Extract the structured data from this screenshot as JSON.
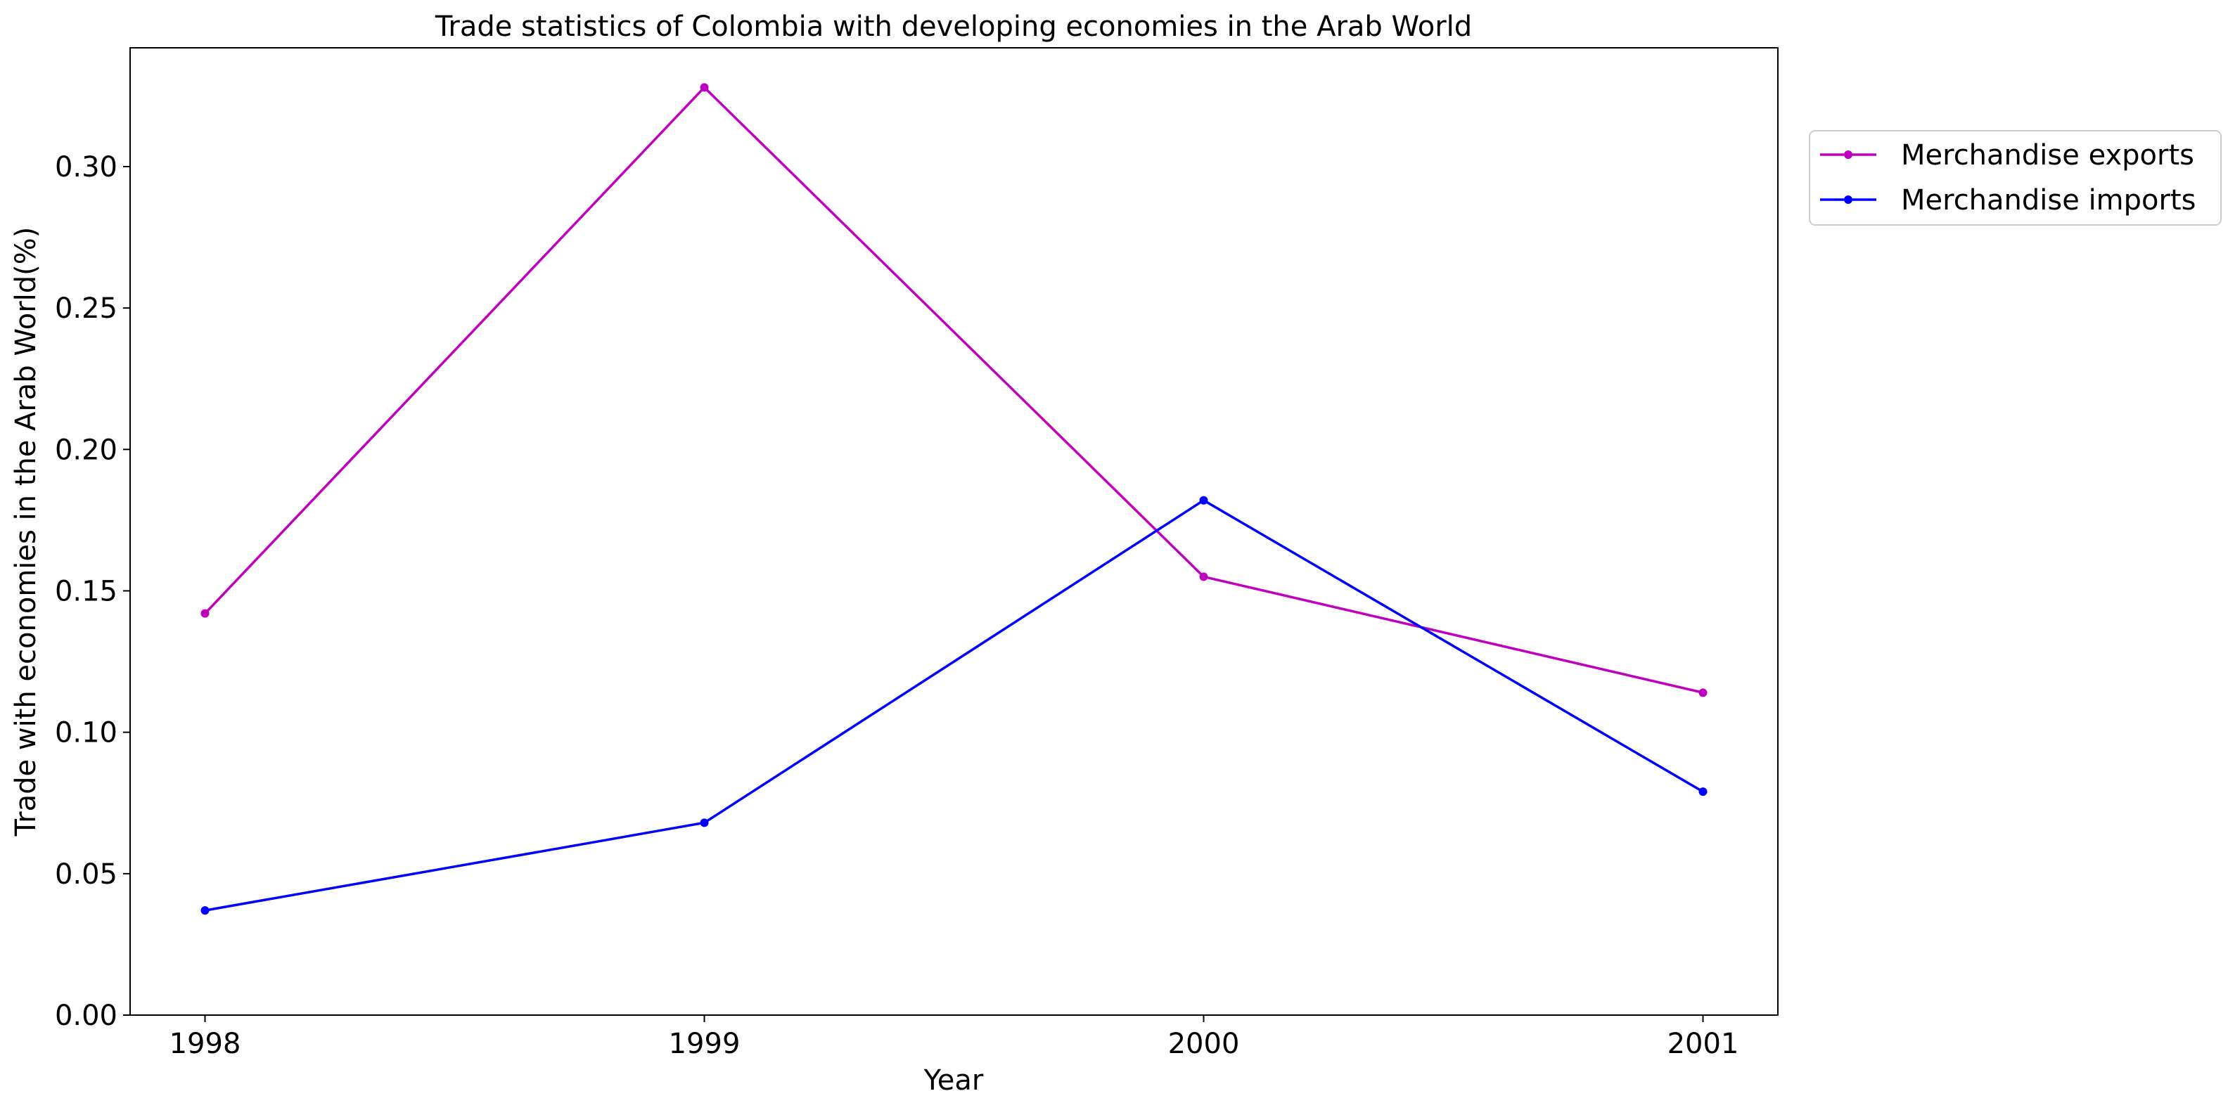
{
  "chart_data": {
    "type": "line",
    "title": "Trade statistics of Colombia with developing economies in the Arab World",
    "xlabel": "Year",
    "ylabel": "Trade with economies in the Arab World(%)",
    "categories": [
      "1998",
      "1999",
      "2000",
      "2001"
    ],
    "x": [
      1998,
      1999,
      2000,
      2001
    ],
    "ylim": [
      0.0,
      0.342
    ],
    "yticks": [
      0.0,
      0.05,
      0.1,
      0.15,
      0.2,
      0.25,
      0.3
    ],
    "ytick_labels": [
      "0.00",
      "0.05",
      "0.10",
      "0.15",
      "0.20",
      "0.25",
      "0.30"
    ],
    "grid": false,
    "legend_position": "outside-top-right",
    "series": [
      {
        "name": "Merchandise exports",
        "color": "#bf00bf",
        "values": [
          0.142,
          0.328,
          0.155,
          0.114
        ]
      },
      {
        "name": "Merchandise imports",
        "color": "#0000ff",
        "values": [
          0.037,
          0.068,
          0.182,
          0.079
        ]
      }
    ]
  }
}
